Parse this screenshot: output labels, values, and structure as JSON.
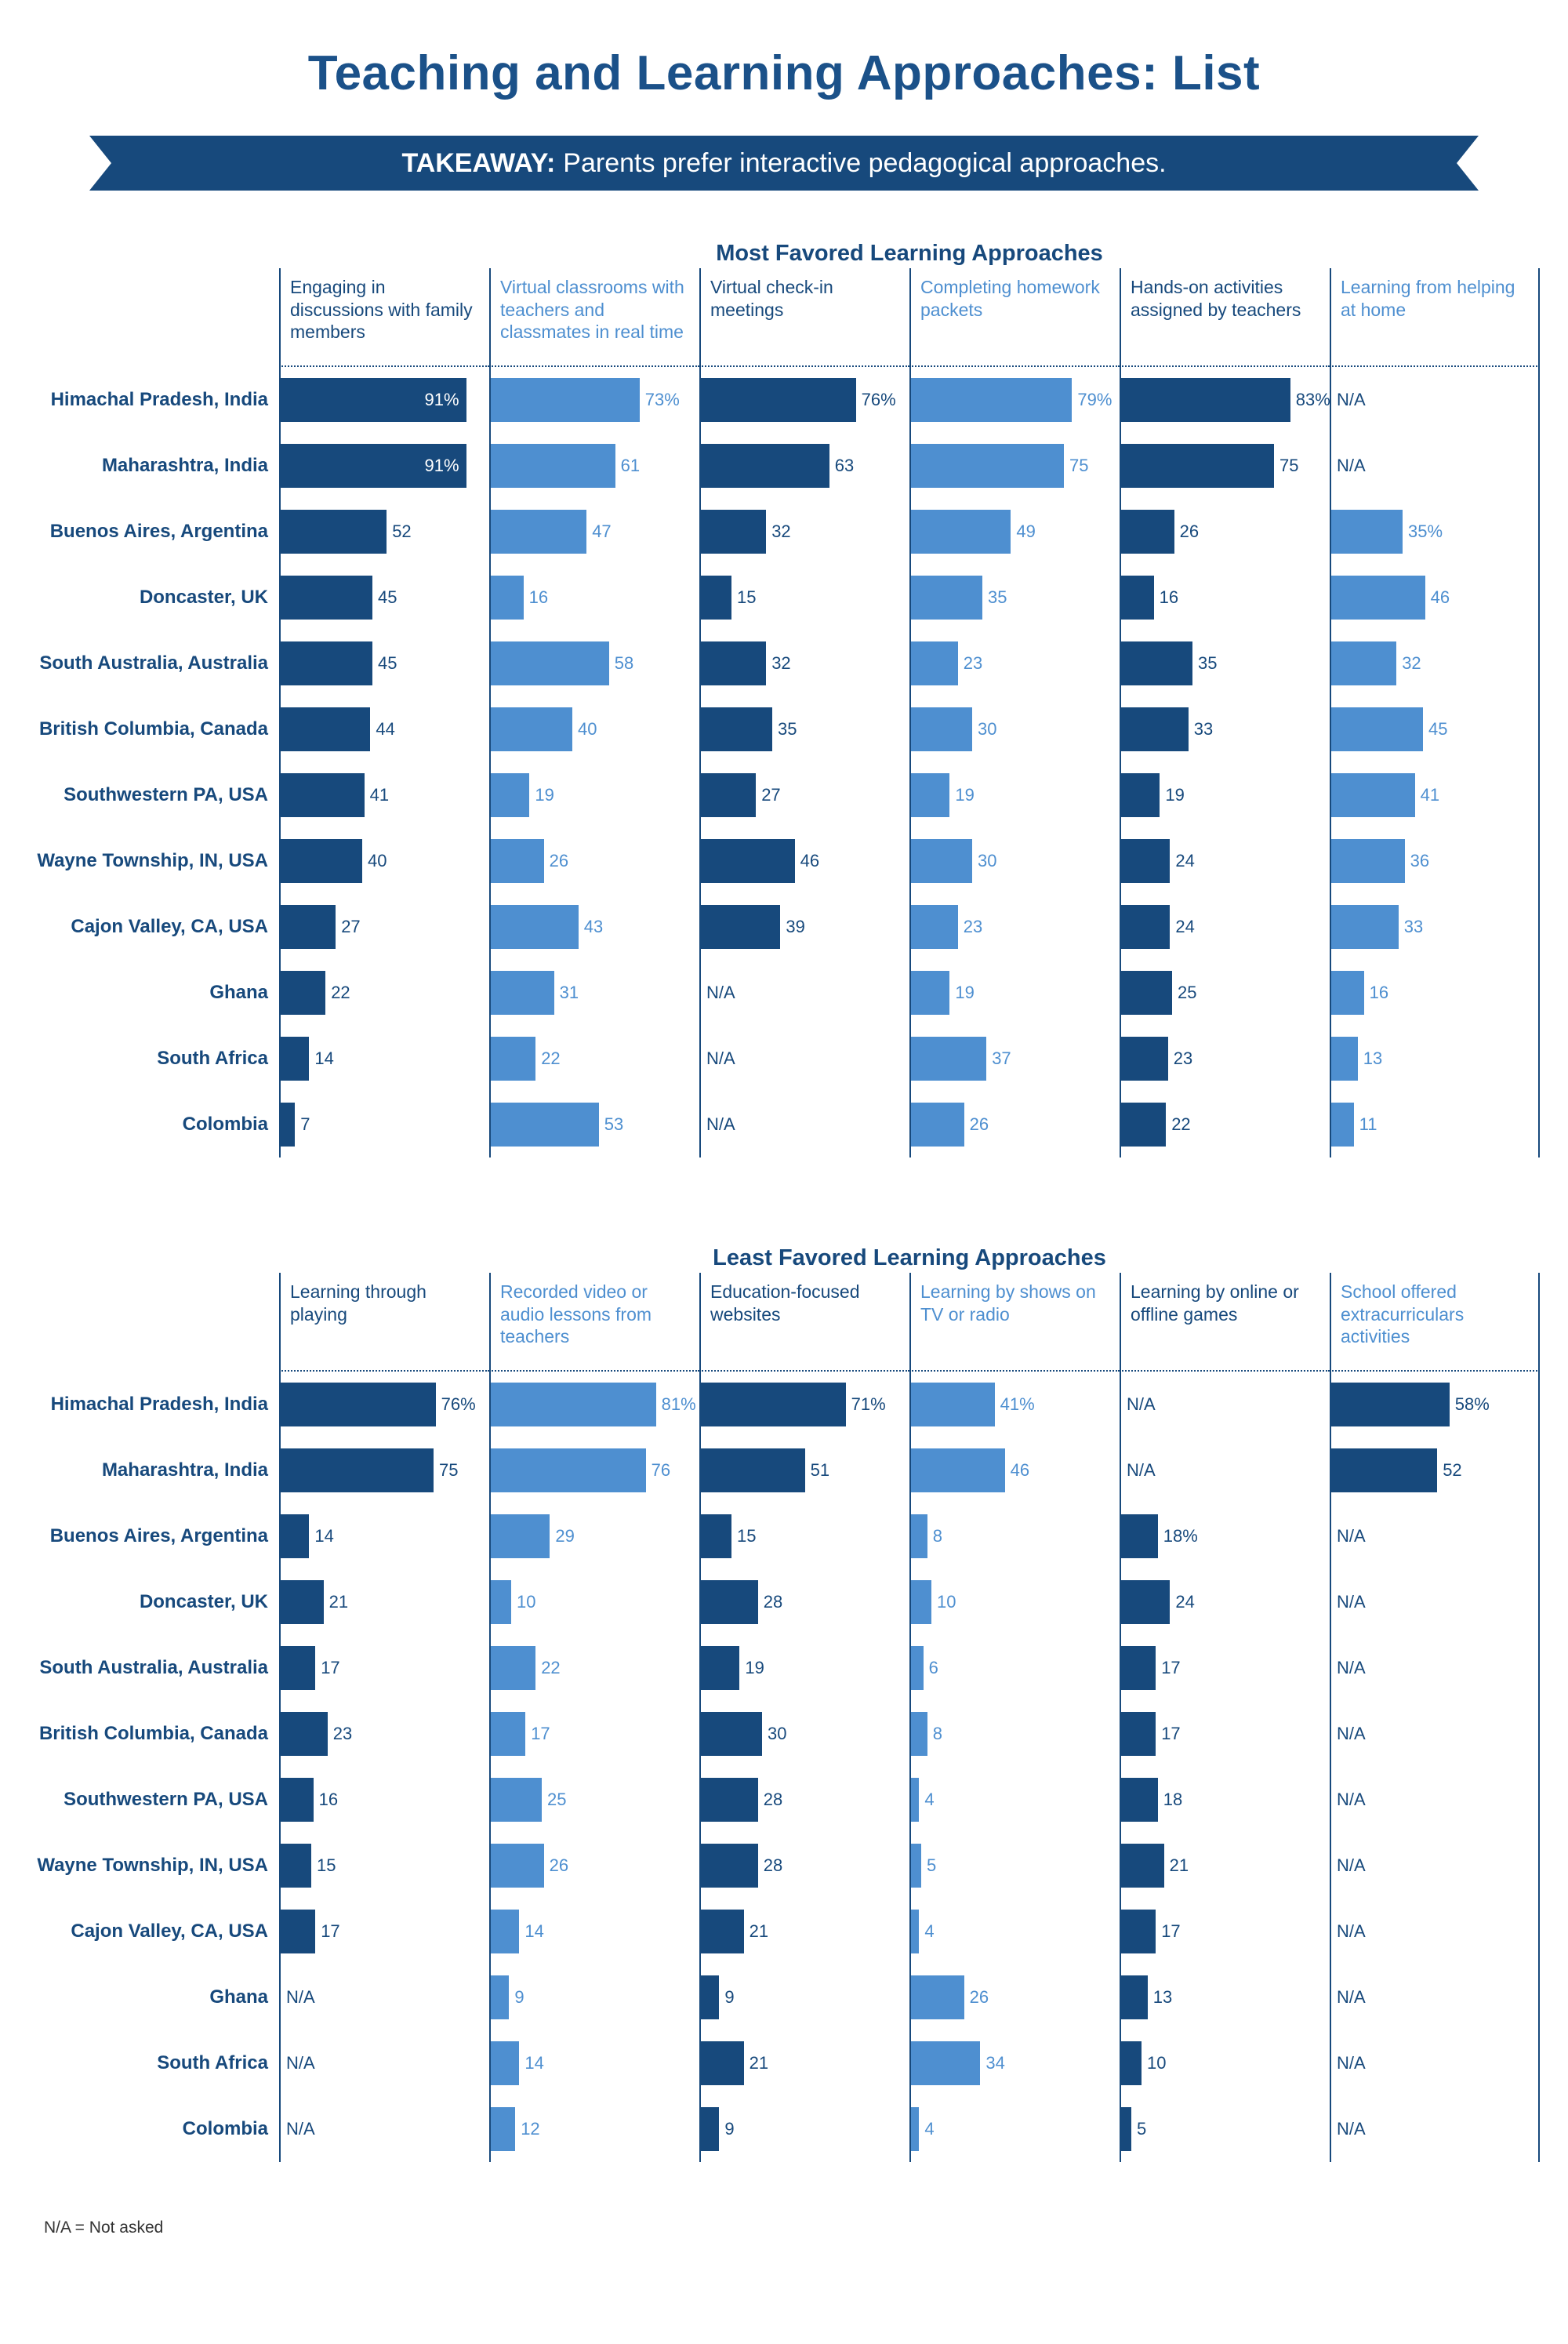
{
  "page": {
    "title": "Teaching and Learning Approaches: List",
    "takeaway_label": "TAKEAWAY:",
    "takeaway_text": " Parents prefer interactive pedagogical approaches.",
    "footnote": "N/A = Not asked"
  },
  "colors": {
    "dark_navy": "#17497C",
    "light_blue": "#4E8FD0",
    "title_blue": "#1B5189",
    "background": "#ffffff"
  },
  "chart_data": [
    {
      "type": "bar",
      "orientation": "horizontal",
      "title": "Most Favored Learning Approaches",
      "value_unit": "%",
      "xlim": [
        0,
        100
      ],
      "grid": false,
      "columns": [
        {
          "label": "Engaging in discussions with family members",
          "header_tone": "dark",
          "bar_tone": "dark"
        },
        {
          "label": "Virtual classrooms with teachers and classmates in real time",
          "header_tone": "light",
          "bar_tone": "light"
        },
        {
          "label": "Virtual check-in meetings",
          "header_tone": "dark",
          "bar_tone": "dark"
        },
        {
          "label": "Completing homework packets",
          "header_tone": "light",
          "bar_tone": "light"
        },
        {
          "label": "Hands-on activities assigned by teachers",
          "header_tone": "dark",
          "bar_tone": "dark"
        },
        {
          "label": "Learning from helping at home",
          "header_tone": "light",
          "bar_tone": "light"
        }
      ],
      "rows": [
        {
          "region": "Himachal Pradesh, India",
          "values": [
            91,
            73,
            76,
            79,
            83,
            null
          ],
          "labels": [
            "91%",
            "73%",
            "76%",
            "79%",
            "83%",
            "N/A"
          ]
        },
        {
          "region": "Maharashtra, India",
          "values": [
            91,
            61,
            63,
            75,
            75,
            null
          ],
          "labels": [
            "91%",
            "61",
            "63",
            "75",
            "75",
            "N/A"
          ]
        },
        {
          "region": "Buenos Aires, Argentina",
          "values": [
            52,
            47,
            32,
            49,
            26,
            35
          ],
          "labels": [
            "52",
            "47",
            "32",
            "49",
            "26",
            "35%"
          ]
        },
        {
          "region": "Doncaster, UK",
          "values": [
            45,
            16,
            15,
            35,
            16,
            46
          ],
          "labels": [
            "45",
            "16",
            "15",
            "35",
            "16",
            "46"
          ]
        },
        {
          "region": "South Australia, Australia",
          "values": [
            45,
            58,
            32,
            23,
            35,
            32
          ],
          "labels": [
            "45",
            "58",
            "32",
            "23",
            "35",
            "32"
          ]
        },
        {
          "region": "British Columbia, Canada",
          "values": [
            44,
            40,
            35,
            30,
            33,
            45
          ],
          "labels": [
            "44",
            "40",
            "35",
            "30",
            "33",
            "45"
          ]
        },
        {
          "region": "Southwestern PA, USA",
          "values": [
            41,
            19,
            27,
            19,
            19,
            41
          ],
          "labels": [
            "41",
            "19",
            "27",
            "19",
            "19",
            "41"
          ]
        },
        {
          "region": "Wayne Township, IN, USA",
          "values": [
            40,
            26,
            46,
            30,
            24,
            36
          ],
          "labels": [
            "40",
            "26",
            "46",
            "30",
            "24",
            "36"
          ]
        },
        {
          "region": "Cajon Valley, CA, USA",
          "values": [
            27,
            43,
            39,
            23,
            24,
            33
          ],
          "labels": [
            "27",
            "43",
            "39",
            "23",
            "24",
            "33"
          ]
        },
        {
          "region": "Ghana",
          "values": [
            22,
            31,
            null,
            19,
            25,
            16
          ],
          "labels": [
            "22",
            "31",
            "N/A",
            "19",
            "25",
            "16"
          ]
        },
        {
          "region": "South Africa",
          "values": [
            14,
            22,
            null,
            37,
            23,
            13
          ],
          "labels": [
            "14",
            "22",
            "N/A",
            "37",
            "23",
            "13"
          ]
        },
        {
          "region": "Colombia",
          "values": [
            7,
            53,
            null,
            26,
            22,
            11
          ],
          "labels": [
            "7",
            "53",
            "N/A",
            "26",
            "22",
            "11"
          ]
        }
      ]
    },
    {
      "type": "bar",
      "orientation": "horizontal",
      "title": "Least Favored Learning Approaches",
      "value_unit": "%",
      "xlim": [
        0,
        100
      ],
      "grid": false,
      "columns": [
        {
          "label": "Learning through playing",
          "header_tone": "dark",
          "bar_tone": "dark"
        },
        {
          "label": "Recorded video or audio lessons from teachers",
          "header_tone": "light",
          "bar_tone": "light"
        },
        {
          "label": "Education-focused websites",
          "header_tone": "dark",
          "bar_tone": "dark"
        },
        {
          "label": "Learning by shows on TV or radio",
          "header_tone": "light",
          "bar_tone": "light"
        },
        {
          "label": "Learning by online or offline games",
          "header_tone": "dark",
          "bar_tone": "dark"
        },
        {
          "label": "School offered extracurriculars activities",
          "header_tone": "light",
          "bar_tone": "dark"
        }
      ],
      "rows": [
        {
          "region": "Himachal Pradesh, India",
          "values": [
            76,
            81,
            71,
            41,
            null,
            58
          ],
          "labels": [
            "76%",
            "81%",
            "71%",
            "41%",
            "N/A",
            "58%"
          ]
        },
        {
          "region": "Maharashtra, India",
          "values": [
            75,
            76,
            51,
            46,
            null,
            52
          ],
          "labels": [
            "75",
            "76",
            "51",
            "46",
            "N/A",
            "52"
          ]
        },
        {
          "region": "Buenos Aires, Argentina",
          "values": [
            14,
            29,
            15,
            8,
            18,
            null
          ],
          "labels": [
            "14",
            "29",
            "15",
            "8",
            "18%",
            "N/A"
          ]
        },
        {
          "region": "Doncaster, UK",
          "values": [
            21,
            10,
            28,
            10,
            24,
            null
          ],
          "labels": [
            "21",
            "10",
            "28",
            "10",
            "24",
            "N/A"
          ]
        },
        {
          "region": "South Australia, Australia",
          "values": [
            17,
            22,
            19,
            6,
            17,
            null
          ],
          "labels": [
            "17",
            "22",
            "19",
            "6",
            "17",
            "N/A"
          ]
        },
        {
          "region": "British Columbia, Canada",
          "values": [
            23,
            17,
            30,
            8,
            17,
            null
          ],
          "labels": [
            "23",
            "17",
            "30",
            "8",
            "17",
            "N/A"
          ]
        },
        {
          "region": "Southwestern PA, USA",
          "values": [
            16,
            25,
            28,
            4,
            18,
            null
          ],
          "labels": [
            "16",
            "25",
            "28",
            "4",
            "18",
            "N/A"
          ]
        },
        {
          "region": "Wayne Township, IN, USA",
          "values": [
            15,
            26,
            28,
            5,
            21,
            null
          ],
          "labels": [
            "15",
            "26",
            "28",
            "5",
            "21",
            "N/A"
          ]
        },
        {
          "region": "Cajon Valley, CA, USA",
          "values": [
            17,
            14,
            21,
            4,
            17,
            null
          ],
          "labels": [
            "17",
            "14",
            "21",
            "4",
            "17",
            "N/A"
          ]
        },
        {
          "region": "Ghana",
          "values": [
            null,
            9,
            9,
            26,
            13,
            null
          ],
          "labels": [
            "N/A",
            "9",
            "9",
            "26",
            "13",
            "N/A"
          ]
        },
        {
          "region": "South Africa",
          "values": [
            null,
            14,
            21,
            34,
            10,
            null
          ],
          "labels": [
            "N/A",
            "14",
            "21",
            "34",
            "10",
            "N/A"
          ]
        },
        {
          "region": "Colombia",
          "values": [
            null,
            12,
            9,
            4,
            5,
            null
          ],
          "labels": [
            "N/A",
            "12",
            "9",
            "4",
            "5",
            "N/A"
          ]
        }
      ]
    }
  ]
}
